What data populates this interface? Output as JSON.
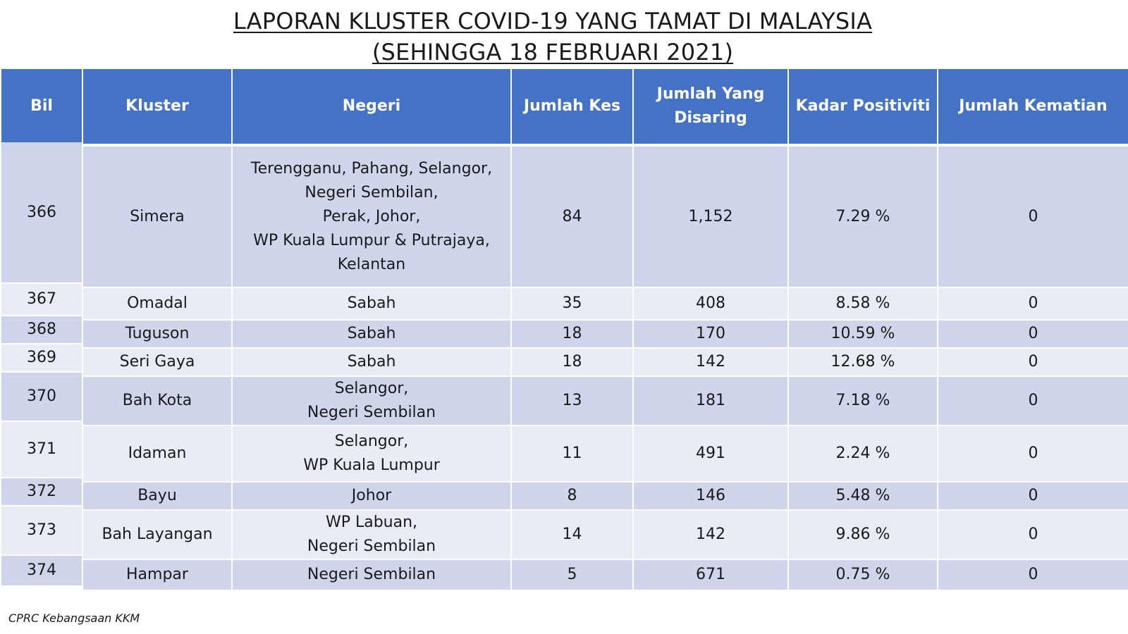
{
  "title": {
    "line1": "LAPORAN KLUSTER COVID-19 YANG TAMAT DI MALAYSIA",
    "line2": "(SEHINGGA 18 FEBRUARI 2021)"
  },
  "table": {
    "headers": {
      "bil": "Bil",
      "kluster": "Kluster",
      "negeri": "Negeri",
      "jumlah_kes": "Jumlah Kes",
      "jumlah_disaring_1": "Jumlah Yang",
      "jumlah_disaring_2": "Disaring",
      "kadar_positiviti": "Kadar Positiviti",
      "jumlah_kematian": "Jumlah Kematian"
    },
    "rows": [
      {
        "bil": "366",
        "kluster": "Simera",
        "negeri": [
          "Terengganu, Pahang, Selangor,",
          "Negeri Sembilan,",
          "Perak, Johor,",
          "WP Kuala Lumpur & Putrajaya,",
          "Kelantan"
        ],
        "kes": "84",
        "disaring": "1,152",
        "positiviti": "7.29 %",
        "kematian": "0"
      },
      {
        "bil": "367",
        "kluster": "Omadal",
        "negeri": [
          "Sabah"
        ],
        "kes": "35",
        "disaring": "408",
        "positiviti": "8.58 %",
        "kematian": "0"
      },
      {
        "bil": "368",
        "kluster": "Tuguson",
        "negeri": [
          "Sabah"
        ],
        "kes": "18",
        "disaring": "170",
        "positiviti": "10.59 %",
        "kematian": "0"
      },
      {
        "bil": "369",
        "kluster": "Seri Gaya",
        "negeri": [
          "Sabah"
        ],
        "kes": "18",
        "disaring": "142",
        "positiviti": "12.68 %",
        "kematian": "0"
      },
      {
        "bil": "370",
        "kluster": "Bah Kota",
        "negeri": [
          "Selangor,",
          "Negeri Sembilan"
        ],
        "kes": "13",
        "disaring": "181",
        "positiviti": "7.18 %",
        "kematian": "0"
      },
      {
        "bil": "371",
        "kluster": "Idaman",
        "negeri": [
          "Selangor,",
          "WP Kuala Lumpur"
        ],
        "kes": "11",
        "disaring": "491",
        "positiviti": "2.24 %",
        "kematian": "0"
      },
      {
        "bil": "372",
        "kluster": "Bayu",
        "negeri": [
          "Johor"
        ],
        "kes": "8",
        "disaring": "146",
        "positiviti": "5.48 %",
        "kematian": "0"
      },
      {
        "bil": "373",
        "kluster": "Bah Layangan",
        "negeri": [
          "WP Labuan,",
          "Negeri Sembilan"
        ],
        "kes": "14",
        "disaring": "142",
        "positiviti": "9.86 %",
        "kematian": "0"
      },
      {
        "bil": "374",
        "kluster": "Hampar",
        "negeri": [
          "Negeri Sembilan"
        ],
        "kes": "5",
        "disaring": "671",
        "positiviti": "0.75 %",
        "kematian": "0"
      }
    ]
  },
  "footer": "CPRC Kebangsaan KKM"
}
